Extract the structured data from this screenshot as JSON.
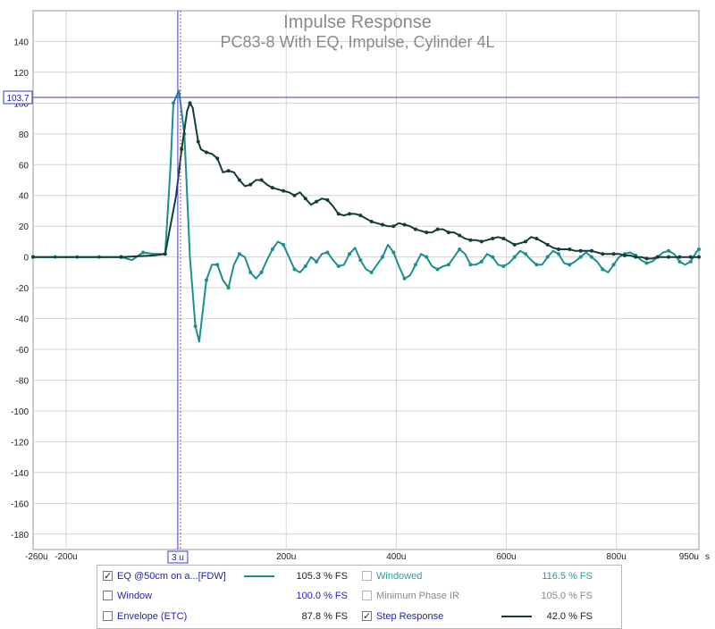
{
  "chart_data": {
    "type": "line",
    "title": "Impulse Response",
    "subtitle": "PC83-8 With EQ, Impulse, Cylinder 4L",
    "x_unit": "s",
    "xlim": [
      -260,
      950
    ],
    "ylim": [
      -190,
      160
    ],
    "x_ticks": [
      -260,
      -200,
      3,
      200,
      400,
      600,
      800,
      950
    ],
    "x_tick_labels": [
      "-260u",
      "-200u",
      "3 u",
      "200u",
      "400u",
      "600u",
      "800u",
      "950u"
    ],
    "y_ticks": [
      140,
      120,
      100,
      80,
      60,
      40,
      20,
      0,
      -20,
      -40,
      -60,
      -80,
      -100,
      -120,
      -140,
      -160,
      -180
    ],
    "cursor": {
      "x": 3,
      "y": 103.7,
      "y_label": "103.7",
      "x_label": "3 u"
    },
    "grid": true,
    "series": [
      {
        "name": "EQ @50cm on a...[FDW]",
        "color": "#1a8f8c",
        "points": [
          [
            -260,
            0
          ],
          [
            -240,
            0
          ],
          [
            -220,
            0
          ],
          [
            -200,
            0
          ],
          [
            -180,
            0
          ],
          [
            -160,
            0
          ],
          [
            -140,
            0
          ],
          [
            -120,
            0
          ],
          [
            -100,
            0
          ],
          [
            -80,
            -2
          ],
          [
            -60,
            3
          ],
          [
            -40,
            2
          ],
          [
            -20,
            2
          ],
          [
            -10,
            60
          ],
          [
            -5,
            100
          ],
          [
            5,
            108
          ],
          [
            15,
            80
          ],
          [
            25,
            0
          ],
          [
            35,
            -45
          ],
          [
            42,
            -55
          ],
          [
            55,
            -15
          ],
          [
            65,
            -5
          ],
          [
            75,
            -5
          ],
          [
            85,
            -15
          ],
          [
            95,
            -20
          ],
          [
            105,
            -5
          ],
          [
            115,
            2
          ],
          [
            125,
            0
          ],
          [
            135,
            -10
          ],
          [
            145,
            -14
          ],
          [
            155,
            -10
          ],
          [
            165,
            -2
          ],
          [
            175,
            5
          ],
          [
            185,
            10
          ],
          [
            195,
            8
          ],
          [
            205,
            0
          ],
          [
            215,
            -8
          ],
          [
            225,
            -10
          ],
          [
            235,
            -6
          ],
          [
            245,
            0
          ],
          [
            255,
            -3
          ],
          [
            265,
            2
          ],
          [
            275,
            3
          ],
          [
            285,
            -2
          ],
          [
            295,
            -6
          ],
          [
            305,
            -5
          ],
          [
            315,
            2
          ],
          [
            325,
            6
          ],
          [
            335,
            -2
          ],
          [
            345,
            -8
          ],
          [
            355,
            -10
          ],
          [
            365,
            -5
          ],
          [
            375,
            0
          ],
          [
            385,
            8
          ],
          [
            395,
            3
          ],
          [
            405,
            -6
          ],
          [
            415,
            -14
          ],
          [
            425,
            -12
          ],
          [
            435,
            -5
          ],
          [
            445,
            2
          ],
          [
            455,
            0
          ],
          [
            465,
            -6
          ],
          [
            475,
            -8
          ],
          [
            485,
            -6
          ],
          [
            495,
            -5
          ],
          [
            505,
            0
          ],
          [
            515,
            5
          ],
          [
            525,
            2
          ],
          [
            535,
            -5
          ],
          [
            545,
            -5
          ],
          [
            555,
            -3
          ],
          [
            565,
            2
          ],
          [
            575,
            0
          ],
          [
            585,
            -5
          ],
          [
            595,
            -6
          ],
          [
            605,
            -4
          ],
          [
            615,
            0
          ],
          [
            625,
            4
          ],
          [
            635,
            2
          ],
          [
            645,
            -2
          ],
          [
            655,
            -5
          ],
          [
            665,
            -5
          ],
          [
            675,
            0
          ],
          [
            685,
            4
          ],
          [
            695,
            2
          ],
          [
            705,
            -4
          ],
          [
            715,
            -5
          ],
          [
            725,
            -3
          ],
          [
            735,
            0
          ],
          [
            745,
            3
          ],
          [
            755,
            0
          ],
          [
            765,
            -3
          ],
          [
            775,
            -8
          ],
          [
            785,
            -10
          ],
          [
            795,
            -5
          ],
          [
            805,
            0
          ],
          [
            815,
            2
          ],
          [
            825,
            3
          ],
          [
            835,
            1
          ],
          [
            845,
            -2
          ],
          [
            855,
            -4
          ],
          [
            865,
            -3
          ],
          [
            875,
            0
          ],
          [
            885,
            3
          ],
          [
            895,
            4
          ],
          [
            905,
            2
          ],
          [
            915,
            -3
          ],
          [
            925,
            -5
          ],
          [
            935,
            -3
          ],
          [
            945,
            3
          ],
          [
            950,
            5
          ]
        ]
      },
      {
        "name": "Step Response",
        "color": "#143c3c",
        "points": [
          [
            -260,
            0
          ],
          [
            -200,
            0
          ],
          [
            -100,
            0
          ],
          [
            -40,
            1
          ],
          [
            -20,
            2
          ],
          [
            0,
            40
          ],
          [
            10,
            70
          ],
          [
            20,
            95
          ],
          [
            25,
            100
          ],
          [
            30,
            97
          ],
          [
            40,
            75
          ],
          [
            45,
            70
          ],
          [
            55,
            68
          ],
          [
            65,
            67
          ],
          [
            75,
            64
          ],
          [
            85,
            55
          ],
          [
            95,
            56
          ],
          [
            105,
            55
          ],
          [
            115,
            50
          ],
          [
            125,
            46
          ],
          [
            135,
            47
          ],
          [
            145,
            50
          ],
          [
            155,
            50
          ],
          [
            165,
            47
          ],
          [
            175,
            45
          ],
          [
            185,
            44
          ],
          [
            195,
            43
          ],
          [
            205,
            42
          ],
          [
            215,
            40
          ],
          [
            225,
            42
          ],
          [
            235,
            38
          ],
          [
            245,
            34
          ],
          [
            255,
            36
          ],
          [
            265,
            38
          ],
          [
            275,
            37
          ],
          [
            285,
            33
          ],
          [
            295,
            28
          ],
          [
            305,
            27
          ],
          [
            315,
            28
          ],
          [
            325,
            28
          ],
          [
            335,
            27
          ],
          [
            345,
            25
          ],
          [
            355,
            23
          ],
          [
            365,
            22
          ],
          [
            375,
            21
          ],
          [
            385,
            20
          ],
          [
            395,
            20
          ],
          [
            405,
            22
          ],
          [
            415,
            21
          ],
          [
            425,
            20
          ],
          [
            435,
            18
          ],
          [
            445,
            17
          ],
          [
            455,
            16
          ],
          [
            465,
            16
          ],
          [
            475,
            18
          ],
          [
            485,
            18
          ],
          [
            495,
            16
          ],
          [
            505,
            16
          ],
          [
            515,
            14
          ],
          [
            525,
            12
          ],
          [
            535,
            11
          ],
          [
            545,
            11
          ],
          [
            555,
            10
          ],
          [
            565,
            11
          ],
          [
            575,
            12
          ],
          [
            585,
            13
          ],
          [
            595,
            12
          ],
          [
            605,
            10
          ],
          [
            615,
            8
          ],
          [
            625,
            9
          ],
          [
            635,
            10
          ],
          [
            645,
            13
          ],
          [
            655,
            12
          ],
          [
            665,
            10
          ],
          [
            675,
            8
          ],
          [
            685,
            6
          ],
          [
            695,
            5
          ],
          [
            705,
            5
          ],
          [
            715,
            5
          ],
          [
            725,
            4
          ],
          [
            735,
            4
          ],
          [
            745,
            4
          ],
          [
            755,
            4
          ],
          [
            765,
            3
          ],
          [
            775,
            2
          ],
          [
            785,
            2
          ],
          [
            795,
            2
          ],
          [
            805,
            2
          ],
          [
            815,
            1
          ],
          [
            825,
            1
          ],
          [
            835,
            0
          ],
          [
            845,
            0
          ],
          [
            855,
            -1
          ],
          [
            865,
            -1
          ],
          [
            875,
            0
          ],
          [
            885,
            0
          ],
          [
            895,
            0
          ],
          [
            905,
            0
          ],
          [
            915,
            0
          ],
          [
            925,
            0
          ],
          [
            935,
            0
          ],
          [
            945,
            0
          ],
          [
            950,
            0
          ]
        ]
      }
    ]
  },
  "legend": {
    "rows": [
      {
        "left_label": "EQ @50cm on a...[FDW]",
        "left_checked": true,
        "left_value": "105.3 % FS",
        "left_color": "#1a8f8c",
        "left_swatch": true,
        "right_label": "Windowed",
        "right_checked": false,
        "right_value": "116.5 % FS",
        "right_label_color": "#2a9f9c",
        "right_value_color": "#2a9f9c"
      },
      {
        "left_label": "Window",
        "left_checked": false,
        "left_value": "100.0 % FS",
        "left_label_color": "#1f1fb4",
        "left_value_color": "#1f1fb4",
        "right_label": "Minimum Phase IR",
        "right_checked": false,
        "right_value": "105.0 % FS",
        "right_label_color": "#888888",
        "right_value_color": "#888888"
      },
      {
        "left_label": "Envelope (ETC)",
        "left_checked": false,
        "left_value": "87.8 % FS",
        "right_label": "Step Response",
        "right_checked": true,
        "right_value": "42.0 % FS",
        "right_color": "#143c3c",
        "right_swatch": true
      }
    ]
  }
}
